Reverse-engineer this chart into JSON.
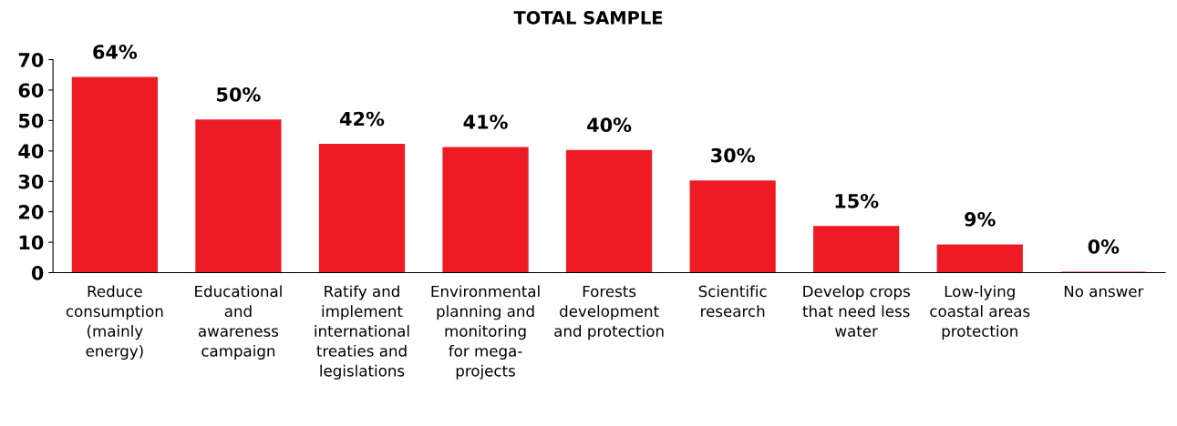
{
  "chart_data": {
    "type": "bar",
    "title": "TOTAL SAMPLE",
    "categories": [
      "Reduce\nconsumption\n(mainly\nenergy)",
      "Educational\nand\nawareness\ncampaign",
      "Ratify and\nimplement\ninternational\ntreaties and\nlegislations",
      "Environmental\nplanning and\nmonitoring\nfor mega-\nprojects",
      "Forests\ndevelopment\nand protection",
      "Scientific\nresearch",
      "Develop crops\nthat need less\nwater",
      "Low-lying\ncoastal areas\nprotection",
      "No answer"
    ],
    "values": [
      64,
      50,
      42,
      41,
      40,
      30,
      15,
      9,
      0
    ],
    "value_labels": [
      "64%",
      "50%",
      "42%",
      "41%",
      "40%",
      "30%",
      "15%",
      "9%",
      "0%"
    ],
    "color": "#ed1c24",
    "ylim": [
      0,
      70
    ],
    "yticks": [
      0,
      10,
      20,
      30,
      40,
      50,
      60,
      70
    ],
    "grid": false
  }
}
